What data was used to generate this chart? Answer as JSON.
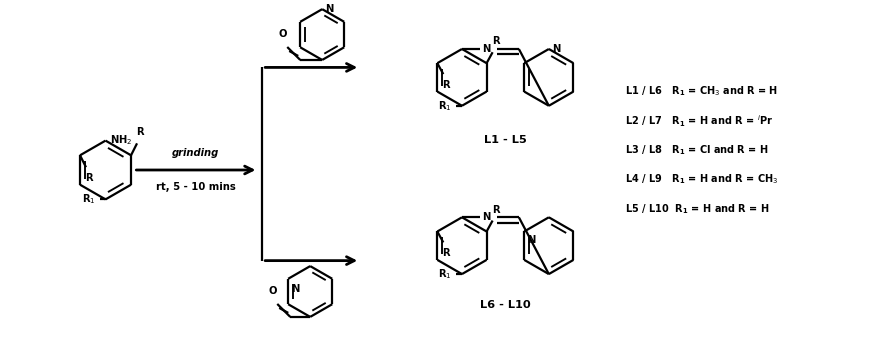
{
  "background_color": "#ffffff",
  "text_color": "#000000",
  "line_color": "#000000",
  "line_width": 1.6,
  "figsize": [
    8.86,
    3.39
  ],
  "dpi": 100,
  "grinding_text": "grinding",
  "rt_text": "rt, 5 - 10 mins",
  "label_top": "L1 - L5",
  "label_bottom": "L6 - L10",
  "legend_entries": [
    [
      "L1 / L6",
      "R",
      "1",
      " = CH",
      "3",
      " and R = H"
    ],
    [
      "L2 / L7",
      "R",
      "1",
      " = H and R = ",
      "i",
      "Pr"
    ],
    [
      "L3 / L8",
      "R",
      "1",
      " = Cl and R = H",
      "",
      ""
    ],
    [
      "L4 / L9",
      "R",
      "1",
      " = H and R = CH",
      "3",
      ""
    ],
    [
      "L5 / L10",
      "R",
      "1",
      " = H and R = H",
      "",
      ""
    ]
  ]
}
